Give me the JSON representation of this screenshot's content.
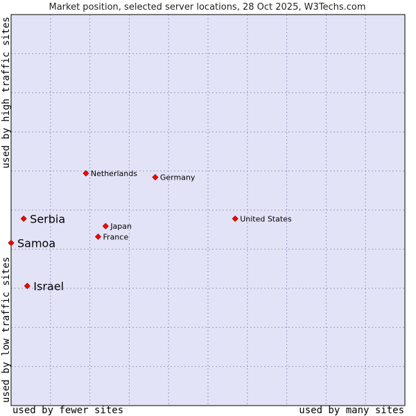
{
  "chart_data": {
    "type": "scatter",
    "title": "Market position, selected server locations, 28 Oct 2025, W3Techs.com",
    "xlabel_left": "used by fewer sites",
    "xlabel_right": "used by many sites",
    "ylabel_bottom": "used by low traffic sites",
    "ylabel_top": "used by high traffic sites",
    "xlim": [
      0,
      100
    ],
    "ylim": [
      0,
      100
    ],
    "grid": true,
    "grid_divisions": 10,
    "colors": {
      "plot_background": "#e3e3f7",
      "frame": "#000000",
      "marker": "#ff0000",
      "marker_stroke": "#9c0000"
    },
    "points": [
      {
        "name": "Netherlands",
        "x": 19.0,
        "y": 59.4,
        "emphasis": false
      },
      {
        "name": "Germany",
        "x": 36.6,
        "y": 58.4,
        "emphasis": false
      },
      {
        "name": "Serbia",
        "x": 3.2,
        "y": 47.8,
        "emphasis": true
      },
      {
        "name": "United States",
        "x": 56.9,
        "y": 47.8,
        "emphasis": false
      },
      {
        "name": "Japan",
        "x": 24.0,
        "y": 45.9,
        "emphasis": false
      },
      {
        "name": "France",
        "x": 22.1,
        "y": 43.2,
        "emphasis": false
      },
      {
        "name": "Samoa",
        "x": 0.0,
        "y": 41.6,
        "emphasis": true
      },
      {
        "name": "Israel",
        "x": 4.1,
        "y": 30.6,
        "emphasis": true
      }
    ]
  }
}
